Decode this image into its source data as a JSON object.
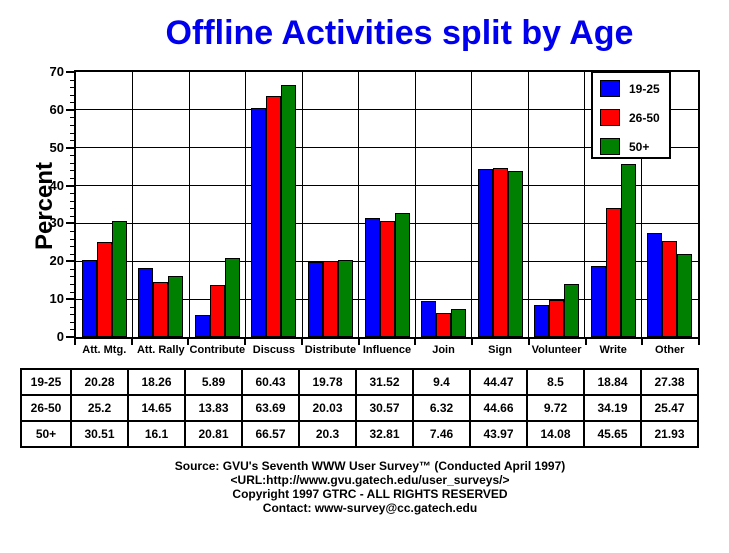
{
  "colors": {
    "title": "#0000EE",
    "axis": "#000000",
    "background": "#FFFFFF"
  },
  "chart_data": {
    "type": "bar",
    "title": "Offline Activities split by Age",
    "ylabel": "Percent",
    "xlabel": "",
    "ylim": [
      0,
      70
    ],
    "ytick_step": 10,
    "ytick_minor_step": 2,
    "grid": true,
    "legend_position": "top-right",
    "categories": [
      "Att. Mtg.",
      "Att. Rally",
      "Contribute",
      "Discuss",
      "Distribute",
      "Influence",
      "Join",
      "Sign",
      "Volunteer",
      "Write",
      "Other"
    ],
    "series": [
      {
        "name": "19-25",
        "color": "#0000FF",
        "values": [
          20.28,
          18.26,
          5.89,
          60.43,
          19.78,
          31.52,
          9.4,
          44.47,
          8.5,
          18.84,
          27.38
        ]
      },
      {
        "name": "26-50",
        "color": "#FF0000",
        "values": [
          25.2,
          14.65,
          13.83,
          63.69,
          20.03,
          30.57,
          6.32,
          44.66,
          9.72,
          34.19,
          25.47
        ]
      },
      {
        "name": "50+",
        "color": "#008000",
        "values": [
          30.51,
          16.1,
          20.81,
          66.57,
          20.3,
          32.81,
          7.46,
          43.97,
          14.08,
          45.65,
          21.93
        ]
      }
    ]
  },
  "footer": {
    "lines": [
      "Source: GVU's Seventh WWW User Survey™ (Conducted April 1997)",
      "<URL:http://www.gvu.gatech.edu/user_surveys/>",
      "Copyright 1997 GTRC - ALL RIGHTS RESERVED",
      "Contact: www-survey@cc.gatech.edu"
    ]
  }
}
